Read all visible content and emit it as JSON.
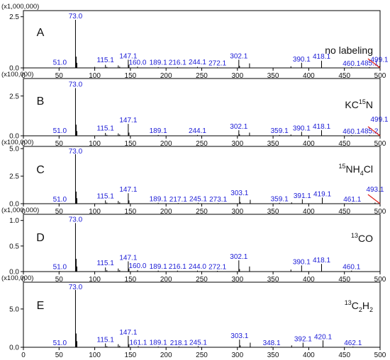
{
  "chart_data": [
    {
      "type": "bar",
      "panel": "A",
      "scale_label": "(x1,000,000)",
      "condition": "no labeling",
      "xlim": [
        0,
        500
      ],
      "ylim": [
        0,
        2.8
      ],
      "yticks": [
        {
          "value": 0.0,
          "label": "0.0"
        },
        {
          "value": 2.5,
          "label": "2.5"
        }
      ],
      "x": [
        51,
        60,
        73,
        74,
        75,
        100,
        115,
        117,
        133,
        135,
        147,
        148,
        160,
        189,
        216,
        244,
        272,
        302,
        303,
        317,
        375,
        390,
        418,
        460,
        485,
        499
      ],
      "y": [
        0.03,
        0.02,
        2.35,
        0.55,
        0.25,
        0.05,
        0.15,
        0.05,
        0.12,
        0.06,
        0.4,
        0.15,
        0.06,
        0.04,
        0.04,
        0.05,
        0.03,
        0.4,
        0.1,
        0.22,
        0.08,
        0.25,
        0.35,
        0.04,
        0.04,
        0.08
      ],
      "peak_labels": [
        "51.0",
        "73.0",
        "115.1",
        "147.1",
        "160.0",
        "189.1",
        "216.1",
        "244.1",
        "272.1",
        "302.1",
        "390.1",
        "418.1",
        "460.1",
        "485.1",
        "499.1"
      ],
      "peak_label_x": [
        51,
        73,
        115,
        147,
        160,
        189,
        216,
        244,
        272,
        302,
        390,
        418,
        460,
        485,
        499
      ],
      "peak_label_y": [
        0.08,
        2.35,
        0.2,
        0.4,
        0.08,
        0.08,
        0.08,
        0.1,
        0.06,
        0.4,
        0.25,
        0.38,
        0.04,
        0.06,
        0.23
      ],
      "has_red_line": true
    },
    {
      "type": "bar",
      "panel": "B",
      "scale_label": "(x100,000)",
      "condition_prefix": "KC",
      "condition_sup": "15",
      "condition_suffix": "N",
      "xlim": [
        0,
        500
      ],
      "ylim": [
        0,
        3.6
      ],
      "yticks": [
        {
          "value": 0.0,
          "label": "0.0"
        },
        {
          "value": 2.5,
          "label": "2.5"
        }
      ],
      "x": [
        51,
        73,
        74,
        75,
        115,
        117,
        133,
        135,
        147,
        148,
        189,
        244,
        302,
        303,
        317,
        359,
        375,
        390,
        418,
        460,
        485,
        499
      ],
      "y": [
        0.03,
        3.0,
        0.7,
        0.3,
        0.18,
        0.06,
        0.15,
        0.08,
        0.75,
        0.2,
        0.05,
        0.05,
        0.35,
        0.1,
        0.2,
        0.05,
        0.08,
        0.25,
        0.35,
        0.04,
        0.04,
        0.08
      ],
      "peak_labels": [
        "51.0",
        "73.0",
        "115.1",
        "147.1",
        "189.1",
        "244.1",
        "302.1",
        "359.1",
        "390.1",
        "418.1",
        "460.1",
        "485.2",
        "499.1"
      ],
      "peak_label_x": [
        51,
        73,
        115,
        147,
        189,
        244,
        302,
        359,
        390,
        418,
        460,
        485,
        499
      ],
      "peak_label_y": [
        0.08,
        3.0,
        0.25,
        0.75,
        0.08,
        0.08,
        0.35,
        0.08,
        0.25,
        0.35,
        0.04,
        0.06,
        0.8
      ],
      "has_red_line": true
    },
    {
      "type": "bar",
      "panel": "C",
      "scale_label": "(x100,000)",
      "condition_sup_pre": "15",
      "condition_a": "NH",
      "condition_sub": "4",
      "condition_b": "Cl",
      "xlim": [
        0,
        500
      ],
      "ylim": [
        0,
        5.2
      ],
      "yticks": [
        {
          "value": 0.0,
          "label": "0.0"
        },
        {
          "value": 2.5,
          "label": "2.5"
        },
        {
          "value": 5.0,
          "label": "5.0"
        }
      ],
      "x": [
        51,
        73,
        74,
        75,
        115,
        117,
        133,
        135,
        147,
        148,
        189,
        217,
        245,
        273,
        303,
        304,
        318,
        359,
        376,
        391,
        419,
        461,
        493
      ],
      "y": [
        0.03,
        4.5,
        1.1,
        0.5,
        0.3,
        0.1,
        0.25,
        0.12,
        0.95,
        0.3,
        0.08,
        0.06,
        0.08,
        0.05,
        0.65,
        0.15,
        0.35,
        0.08,
        0.12,
        0.4,
        0.55,
        0.05,
        0.1
      ],
      "peak_labels": [
        "51.0",
        "73.0",
        "115.1",
        "147.1",
        "189.1",
        "217.1",
        "245.1",
        "273.1",
        "303.1",
        "359.1",
        "391.1",
        "419.1",
        "461.1",
        "493.1"
      ],
      "peak_label_x": [
        51,
        73,
        115,
        147,
        189,
        217,
        245,
        273,
        303,
        359,
        391,
        419,
        461,
        493
      ],
      "peak_label_y": [
        0.08,
        4.5,
        0.35,
        0.95,
        0.1,
        0.08,
        0.1,
        0.06,
        0.65,
        0.1,
        0.4,
        0.55,
        0.05,
        0.95
      ],
      "has_red_line": true
    },
    {
      "type": "bar",
      "panel": "D",
      "scale_label": "(x1,000,000)",
      "condition_sup": "13",
      "condition_main": "CO",
      "xlim": [
        0,
        500
      ],
      "ylim": [
        0,
        1.12
      ],
      "yticks": [
        {
          "value": 0.0,
          "label": "0.0"
        },
        {
          "value": 0.5,
          "label": "0.5"
        },
        {
          "value": 1.0,
          "label": "1.0"
        }
      ],
      "x": [
        51,
        73,
        74,
        75,
        115,
        117,
        133,
        135,
        147,
        148,
        160,
        189,
        216,
        244,
        272,
        302,
        303,
        317,
        375,
        390,
        418,
        460
      ],
      "y": [
        0.01,
        0.95,
        0.25,
        0.1,
        0.08,
        0.03,
        0.06,
        0.03,
        0.2,
        0.06,
        0.03,
        0.02,
        0.02,
        0.02,
        0.015,
        0.22,
        0.05,
        0.1,
        0.04,
        0.12,
        0.15,
        0.02
      ],
      "peak_labels": [
        "51.0",
        "73.0",
        "115.1",
        "147.1",
        "160.0",
        "189.1",
        "216.1",
        "244.0",
        "272.1",
        "302.1",
        "390.1",
        "418.1",
        "460.1"
      ],
      "peak_label_x": [
        51,
        73,
        115,
        147,
        160,
        189,
        216,
        244,
        272,
        302,
        390,
        418,
        460
      ],
      "peak_label_y": [
        0.02,
        0.95,
        0.1,
        0.2,
        0.04,
        0.03,
        0.03,
        0.03,
        0.02,
        0.22,
        0.12,
        0.15,
        0.02
      ],
      "has_red_line": false
    },
    {
      "type": "bar",
      "panel": "E",
      "scale_label": "(x100,000)",
      "condition_sup": "13",
      "condition_a": "C",
      "condition_sub1": "2",
      "condition_b": "H",
      "condition_sub2": "2",
      "xlim": [
        0,
        500
      ],
      "ylim": [
        0,
        8.5
      ],
      "yticks": [
        {
          "value": 0.0,
          "label": "0.0"
        },
        {
          "value": 5.0,
          "label": "5.0"
        }
      ],
      "x": [
        51,
        73,
        74,
        75,
        115,
        117,
        133,
        135,
        147,
        148,
        161,
        189,
        218,
        245,
        303,
        304,
        318,
        348,
        376,
        392,
        420,
        462
      ],
      "y": [
        0.05,
        7.5,
        1.8,
        0.8,
        0.5,
        0.15,
        0.4,
        0.2,
        1.5,
        0.4,
        0.15,
        0.1,
        0.1,
        0.15,
        1.0,
        0.25,
        0.6,
        0.1,
        0.25,
        0.6,
        0.9,
        0.1
      ],
      "peak_labels": [
        "51.0",
        "73.0",
        "115.1",
        "147.1",
        "161.1",
        "189.1",
        "218.1",
        "245.1",
        "303.1",
        "348.1",
        "392.1",
        "420.1",
        "462.1"
      ],
      "peak_label_x": [
        51,
        73,
        115,
        147,
        161,
        189,
        218,
        245,
        303,
        348,
        392,
        420,
        462
      ],
      "peak_label_y": [
        0.1,
        7.5,
        0.5,
        1.5,
        0.15,
        0.15,
        0.1,
        0.15,
        1.0,
        0.1,
        0.6,
        0.9,
        0.1
      ],
      "has_red_line": false
    }
  ],
  "xticks": [
    {
      "value": 0,
      "label": "0"
    },
    {
      "value": 50,
      "label": "50"
    },
    {
      "value": 100,
      "label": "100"
    },
    {
      "value": 150,
      "label": "150"
    },
    {
      "value": 200,
      "label": "200"
    },
    {
      "value": 250,
      "label": "250"
    },
    {
      "value": 300,
      "label": "300"
    },
    {
      "value": 350,
      "label": "350"
    },
    {
      "value": 400,
      "label": "400"
    },
    {
      "value": 450,
      "label": "450"
    },
    {
      "value": 500,
      "label": "500"
    }
  ],
  "colors": {
    "peak_label": "#1a1ad6",
    "bars": "#000000",
    "red_line": "#e0201a"
  }
}
